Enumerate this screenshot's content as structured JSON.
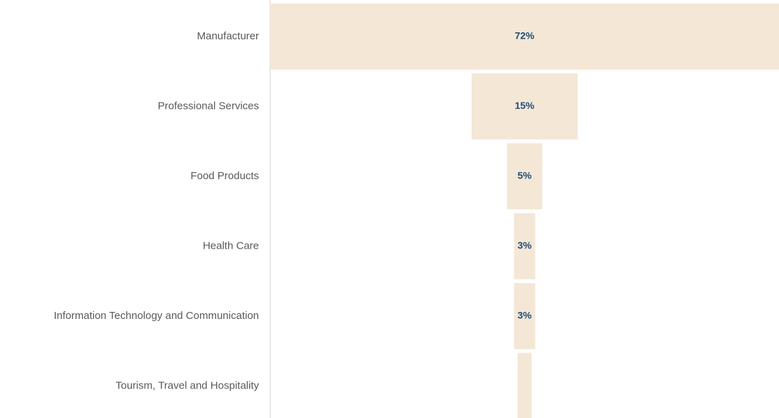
{
  "chart_data": {
    "type": "funnel",
    "categories": [
      "Manufacturer",
      "Professional Services",
      "Food Products",
      "Health Care",
      "Information Technology and Communication",
      "Tourism, Travel and Hospitality"
    ],
    "values": [
      72,
      15,
      5,
      3,
      3,
      2
    ],
    "value_labels": [
      "72%",
      "15%",
      "5%",
      "3%",
      "3%",
      null
    ],
    "color": "#f4e7d6"
  }
}
